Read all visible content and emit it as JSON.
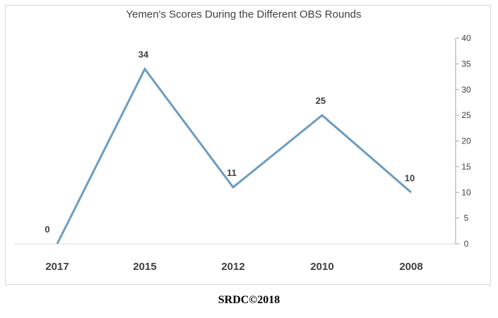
{
  "chart_data": {
    "type": "line",
    "title": "Yemen's Scores During the Different OBS Rounds",
    "xlabel": "",
    "ylabel": "",
    "categories": [
      "2017",
      "2015",
      "2012",
      "2010",
      "2008"
    ],
    "series": [
      {
        "values": [
          0,
          34,
          11,
          25,
          10
        ]
      }
    ],
    "ylim": [
      0,
      40
    ],
    "yticks": [
      "0",
      "5",
      "10",
      "15",
      "20",
      "25",
      "30",
      "35",
      "40"
    ],
    "y_axis_side": "right",
    "grid": false,
    "data_labels": true,
    "legend": "none",
    "line_color": "#6b9dc2"
  },
  "footer": {
    "credit": "SRDC©2018"
  }
}
